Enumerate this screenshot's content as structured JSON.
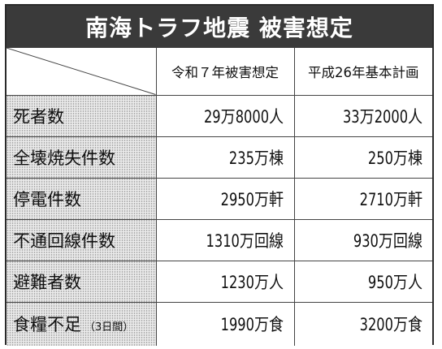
{
  "title": "南海トラフ地震  被害想定",
  "columns": {
    "new_estimate": "令和７年被害想定",
    "old_plan": "平成26年基本計画"
  },
  "rows": [
    {
      "label": "死者数",
      "note": "",
      "new_estimate": "29万8000人",
      "old_plan": "33万2000人"
    },
    {
      "label": "全壊焼失件数",
      "note": "",
      "new_estimate": "235万棟",
      "old_plan": "250万棟"
    },
    {
      "label": "停電件数",
      "note": "",
      "new_estimate": "2950万軒",
      "old_plan": "2710万軒"
    },
    {
      "label": "不通回線件数",
      "note": "",
      "new_estimate": "1310万回線",
      "old_plan": "930万回線"
    },
    {
      "label": "避難者数",
      "note": "",
      "new_estimate": "1230万人",
      "old_plan": "950万人"
    },
    {
      "label": "食糧不足",
      "note": "（3日間）",
      "new_estimate": "1990万食",
      "old_plan": "3200万食"
    }
  ],
  "colors": {
    "title_background": "#3a3a3a",
    "title_text": "#ffffff",
    "label_background": "#ececec",
    "border": "#444444"
  }
}
